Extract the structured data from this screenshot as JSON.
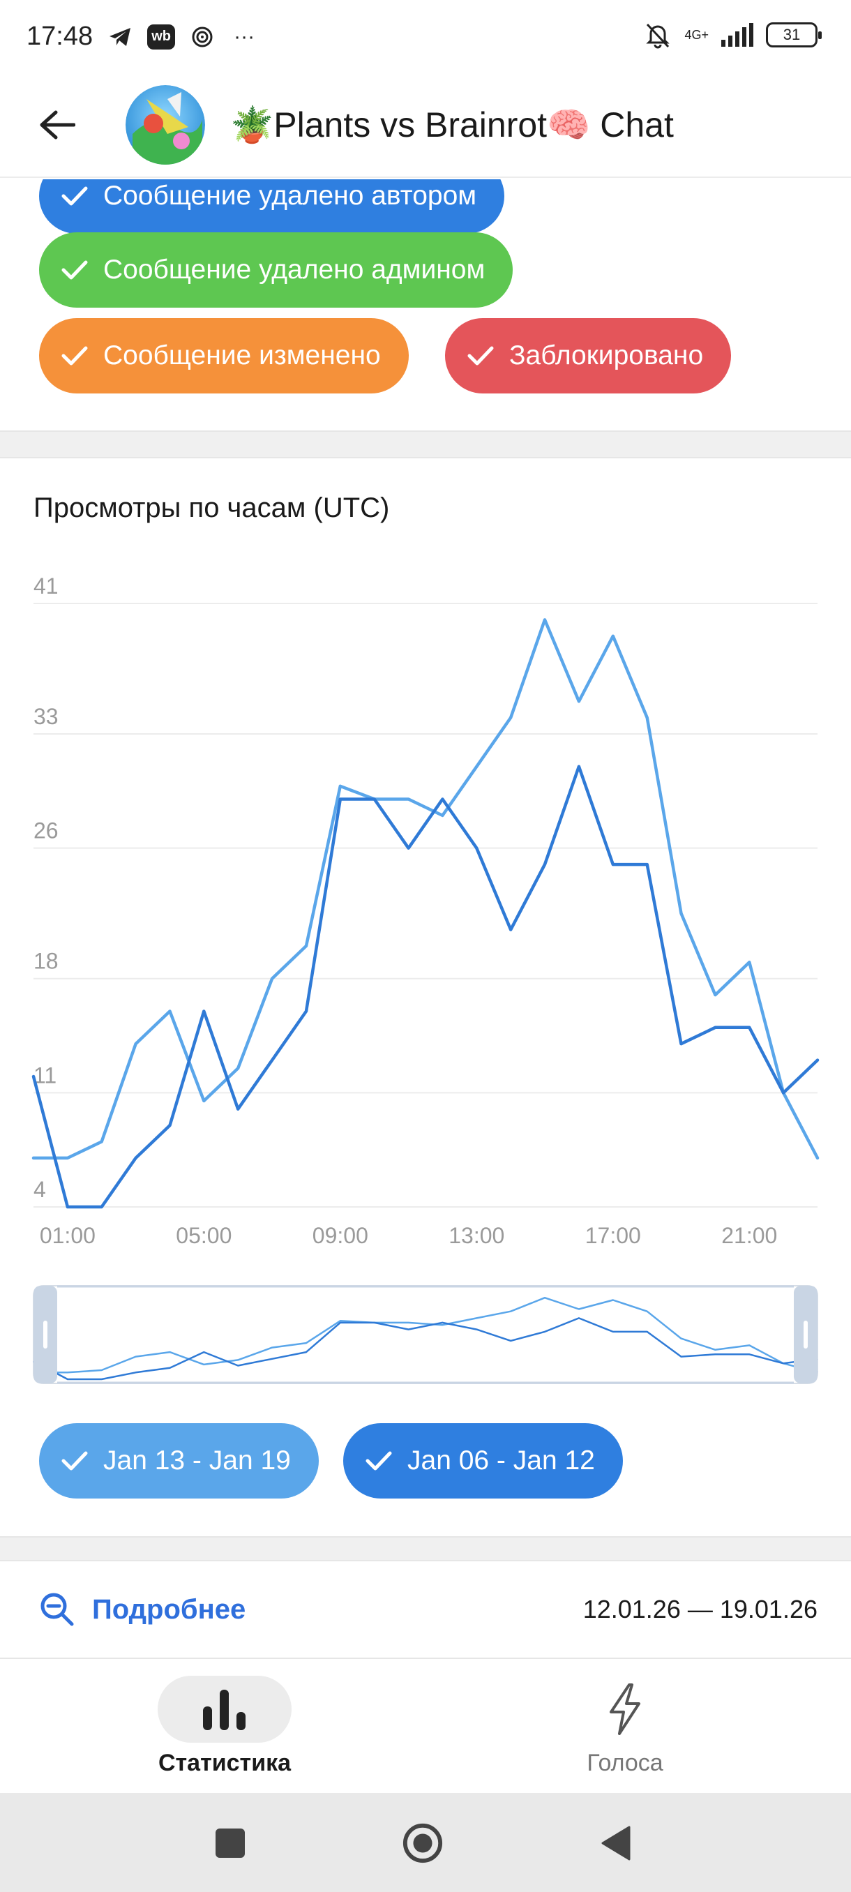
{
  "status_bar": {
    "time": "17:48",
    "wb_badge": "wb",
    "more": "···",
    "network": "4G+",
    "battery": "31"
  },
  "header": {
    "title": "🪴Plants vs Brainrot🧠 Chat"
  },
  "filters": {
    "chips": [
      {
        "label": "Сообщение удалено автором",
        "color": "#2f7fe0"
      },
      {
        "label": "Сообщение удалено админом",
        "color": "#5ec751"
      },
      {
        "label": "Сообщение изменено",
        "color": "#f5913a"
      },
      {
        "label": "Заблокировано",
        "color": "#e4555a"
      }
    ]
  },
  "chart_section": {
    "title": "Просмотры по часам (UTC)"
  },
  "chart_data": {
    "type": "line",
    "title": "Просмотры по часам (UTC)",
    "y_ticks": [
      "41",
      "33",
      "26",
      "18",
      "11",
      "4"
    ],
    "x_ticks": [
      "01:00",
      "05:00",
      "09:00",
      "13:00",
      "17:00",
      "21:00"
    ],
    "ylim": [
      4,
      41
    ],
    "x": [
      "00:00",
      "01:00",
      "02:00",
      "03:00",
      "04:00",
      "05:00",
      "06:00",
      "07:00",
      "08:00",
      "09:00",
      "10:00",
      "11:00",
      "12:00",
      "13:00",
      "14:00",
      "15:00",
      "16:00",
      "17:00",
      "18:00",
      "19:00",
      "20:00",
      "21:00",
      "22:00",
      "23:00"
    ],
    "series": [
      {
        "name": "Jan 13 - Jan 19",
        "color": "#5aa6ea",
        "values": [
          7,
          7,
          8,
          14,
          16,
          10.5,
          12.5,
          18,
          20,
          29.8,
          29,
          29,
          28,
          31,
          34,
          40,
          35,
          39,
          34,
          22,
          17,
          19,
          11,
          7
        ]
      },
      {
        "name": "Jan 06 - Jan 12",
        "color": "#2f7ad6",
        "values": [
          12,
          4,
          4,
          7,
          9,
          16,
          10,
          13,
          16,
          29,
          29,
          26,
          29,
          26,
          21,
          25,
          31,
          25,
          25,
          14,
          15,
          15,
          11,
          13
        ]
      }
    ],
    "grid": true,
    "legend": "bottom"
  },
  "legend_chips": [
    {
      "label": "Jan 13 - Jan 19",
      "color": "#5aa6ea"
    },
    {
      "label": "Jan 06 - Jan 12",
      "color": "#2f7ad6"
    }
  ],
  "details": {
    "link_label": "Подробнее",
    "date_range": "12.01.26 — 19.01.26"
  },
  "tabs": [
    {
      "label": "Статистика",
      "icon": "bar-chart-icon",
      "active": true
    },
    {
      "label": "Голоса",
      "icon": "lightning-icon",
      "active": false
    }
  ]
}
